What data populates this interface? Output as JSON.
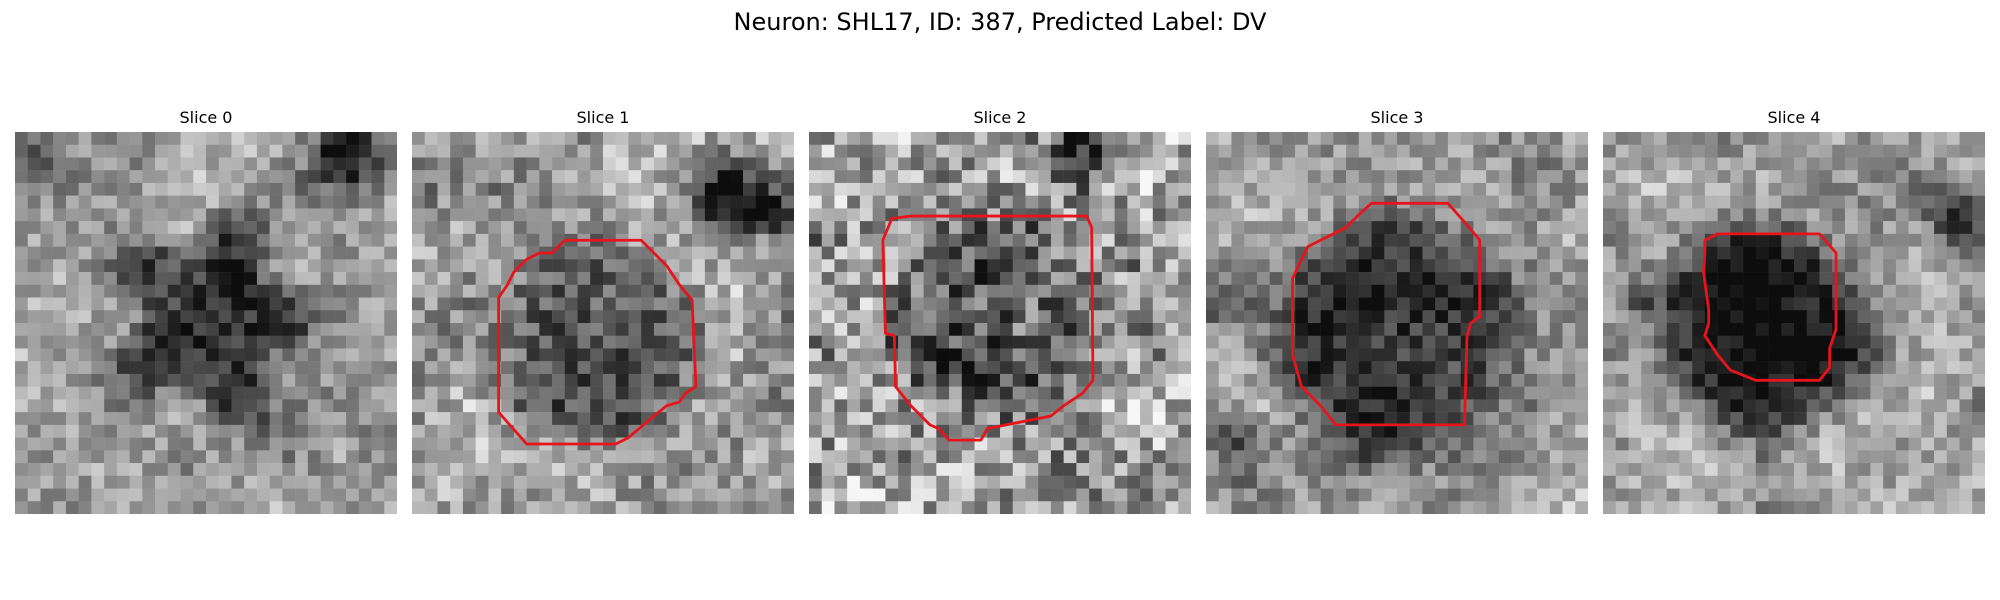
{
  "figure": {
    "title": "Neuron: SHL17, ID: 387, Predicted Label: DV"
  },
  "panels": [
    {
      "title": "Slice 0"
    },
    {
      "title": "Slice 1"
    },
    {
      "title": "Slice 2"
    },
    {
      "title": "Slice 3"
    },
    {
      "title": "Slice 4"
    }
  ],
  "colors": {
    "contour": "#e8141c",
    "background": "#ffffff",
    "colormap": "grayscale"
  }
}
